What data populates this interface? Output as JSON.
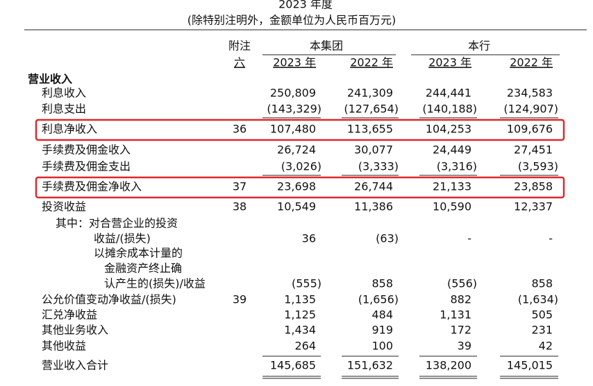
{
  "header": {
    "title": "2023 年度",
    "subtitle": "(除特别注明外，金额单位为人民币百万元)"
  },
  "table": {
    "note_header": [
      "附注",
      "六"
    ],
    "groups": [
      "本集团",
      "本行"
    ],
    "years": [
      "2023 年",
      "2022 年",
      "2023 年",
      "2022 年"
    ],
    "rows": [
      {
        "label": "营业收入"
      },
      {
        "label": "利息收入",
        "values": [
          "250,809",
          "241,309",
          "244,441",
          "234,583"
        ]
      },
      {
        "label": "利息支出",
        "values": [
          "(143,329)",
          "(127,654)",
          "(140,188)",
          "(124,907)"
        ]
      },
      {
        "label": "利息净收入",
        "note": "36",
        "values": [
          "107,480",
          "113,655",
          "104,253",
          "109,676"
        ]
      },
      {
        "label": "手续费及佣金收入",
        "values": [
          "26,724",
          "30,077",
          "24,449",
          "27,451"
        ]
      },
      {
        "label": "手续费及佣金支出",
        "values": [
          "(3,026)",
          "(3,333)",
          "(3,316)",
          "(3,593)"
        ]
      },
      {
        "label": "手续费及佣金净收入",
        "note": "37",
        "values": [
          "23,698",
          "26,744",
          "21,133",
          "23,858"
        ]
      },
      {
        "label": "投资收益",
        "note": "38",
        "values": [
          "10,549",
          "11,386",
          "10,590",
          "12,337"
        ]
      },
      {
        "label": "其中：对合营企业的投资"
      },
      {
        "label": "收益/(损失)",
        "values": [
          "36",
          "(63)",
          "-",
          "-"
        ]
      },
      {
        "label": "以摊余成本计量的"
      },
      {
        "label": "金融资产终止确"
      },
      {
        "label": "认产生的(损失)/收益",
        "values": [
          "(555)",
          "858",
          "(556)",
          "858"
        ]
      },
      {
        "label": "公允价值变动净收益/(损失)",
        "note": "39",
        "values": [
          "1,135",
          "(1,656)",
          "882",
          "(1,634)"
        ]
      },
      {
        "label": "汇兑净收益",
        "values": [
          "1,125",
          "484",
          "1,131",
          "505"
        ]
      },
      {
        "label": "其他业务收入",
        "values": [
          "1,434",
          "919",
          "172",
          "231"
        ]
      },
      {
        "label": "其他收益",
        "values": [
          "264",
          "100",
          "39",
          "42"
        ]
      },
      {
        "label": "营业收入合计",
        "values": [
          "145,685",
          "151,632",
          "138,200",
          "145,015"
        ]
      }
    ]
  }
}
